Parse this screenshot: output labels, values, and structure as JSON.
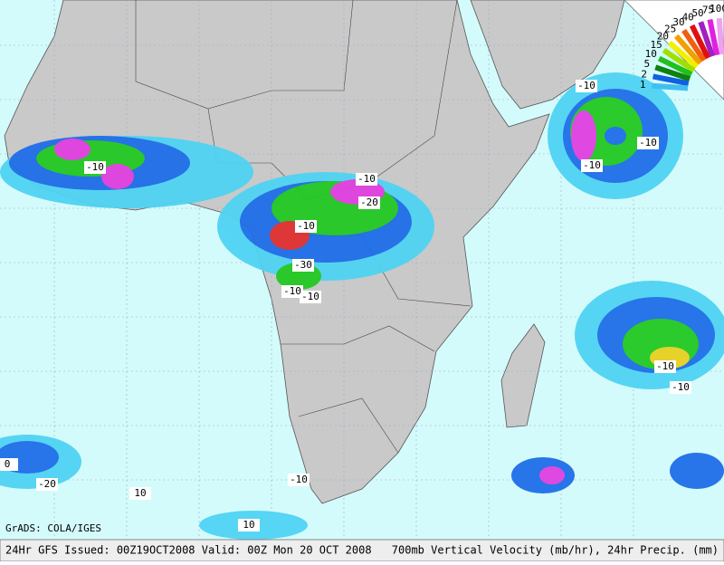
{
  "legend": {
    "labels": [
      "100",
      "75",
      "50",
      "40",
      "30",
      "25",
      "20",
      "15",
      "10",
      "5",
      "2",
      "1"
    ]
  },
  "contour_labels": [
    "-10",
    "-10",
    "-20",
    "-10",
    "-30",
    "-10",
    "-10",
    "-10",
    "-10",
    "-10",
    "-10",
    "-10",
    "-20",
    "0",
    "10",
    "10",
    "-10"
  ],
  "credit": "GrADS: COLA/IGES",
  "footer": {
    "left": "24Hr GFS Issued: 00Z19OCT2008 Valid: 00Z Mon 20 OCT 2008",
    "right": "700mb Vertical Velocity (mb/hr), 24hr Precip. (mm)"
  }
}
